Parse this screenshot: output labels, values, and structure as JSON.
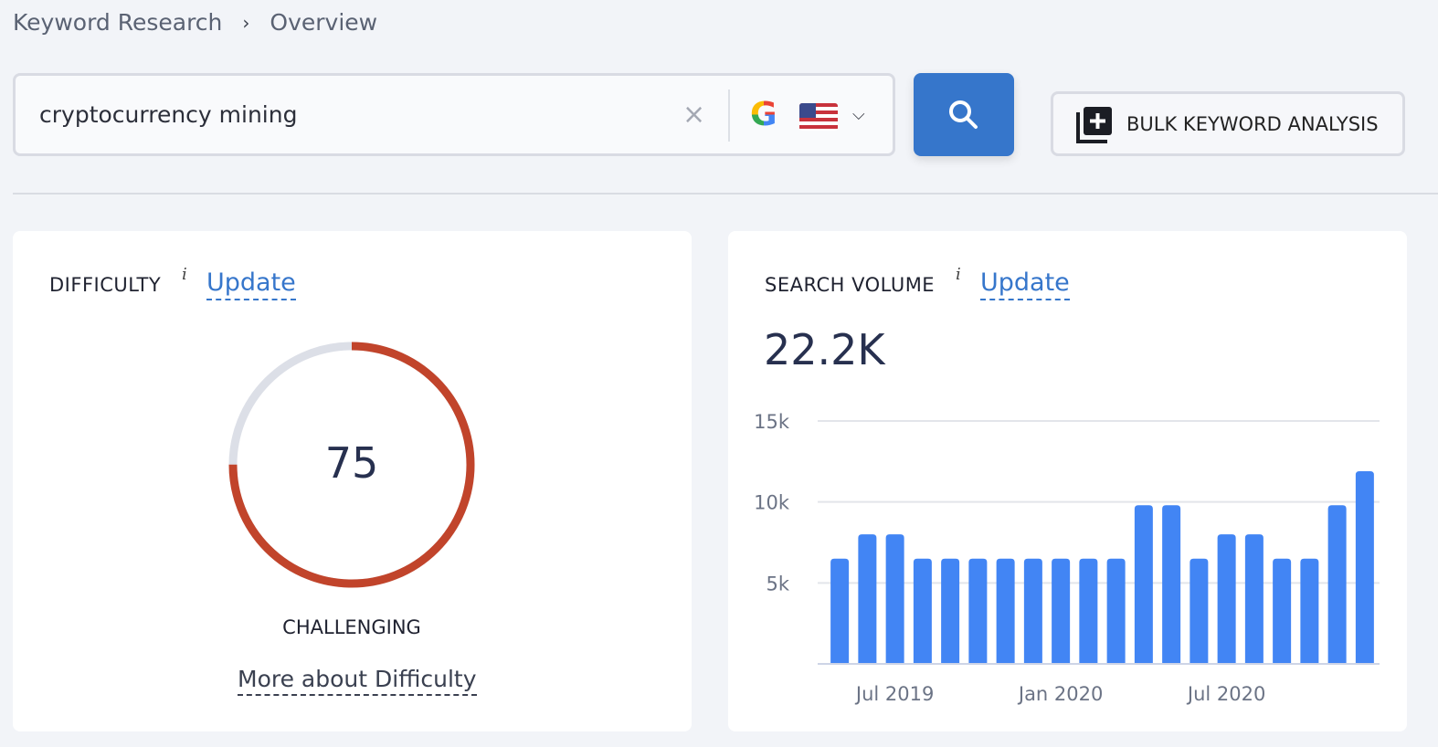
{
  "breadcrumb": {
    "items": [
      "Keyword Research",
      "Overview"
    ],
    "separator": "›"
  },
  "search": {
    "value": "cryptocurrency mining",
    "clear_icon": "×",
    "engine": "G",
    "country": "US",
    "chevron": "⌄"
  },
  "buttons": {
    "bulk_label": "BULK KEYWORD ANALYSIS"
  },
  "difficulty": {
    "title": "DIFFICULTY",
    "info": "i",
    "update": "Update",
    "value": "75",
    "score": 75,
    "level": "CHALLENGING",
    "more": "More about Difficulty",
    "color": "#c1442b",
    "track": "#dcdfe7"
  },
  "volume": {
    "title": "SEARCH VOLUME",
    "info": "i",
    "update": "Update",
    "value": "22.2K"
  },
  "chart_data": {
    "type": "bar",
    "categories": [
      "May 2019",
      "Jun 2019",
      "Jul 2019",
      "Aug 2019",
      "Sep 2019",
      "Oct 2019",
      "Nov 2019",
      "Dec 2019",
      "Jan 2020",
      "Feb 2020",
      "Mar 2020",
      "Apr 2020",
      "May 2020",
      "Jun 2020",
      "Jul 2020",
      "Aug 2020",
      "Sep 2020",
      "Oct 2020",
      "Nov 2020",
      "Dec 2020"
    ],
    "values": [
      6500,
      8000,
      8000,
      6500,
      6500,
      6500,
      6500,
      6500,
      6500,
      6500,
      6500,
      9800,
      9800,
      6500,
      8000,
      8000,
      6500,
      6500,
      9800,
      11900
    ],
    "ylim": [
      0,
      15000
    ],
    "yticks": [
      {
        "v": 5000,
        "label": "5k"
      },
      {
        "v": 10000,
        "label": "10k"
      },
      {
        "v": 15000,
        "label": "15k"
      }
    ],
    "xticks": [
      {
        "i": 2,
        "label": "Jul 2019"
      },
      {
        "i": 8,
        "label": "Jan 2020"
      },
      {
        "i": 14,
        "label": "Jul 2020"
      }
    ],
    "grid": true,
    "color": "#4285f4"
  }
}
